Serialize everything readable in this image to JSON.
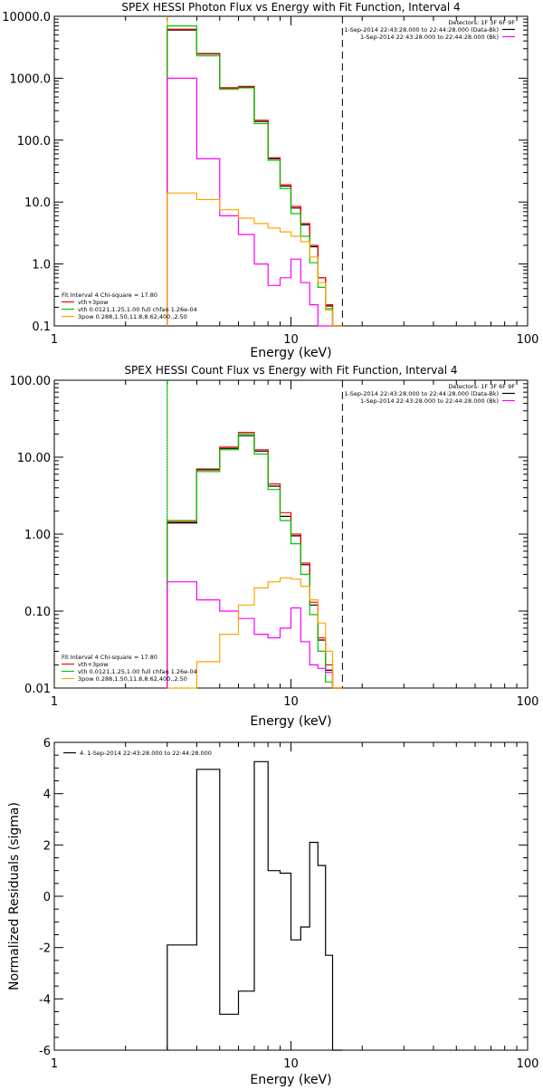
{
  "chart_data": [
    {
      "type": "line",
      "title": "SPEX HESSI Photon Flux vs Energy with Fit Function, Interval 4",
      "xlabel": "Energy (keV)",
      "ylabel": "",
      "xscale": "log",
      "yscale": "log",
      "xlim": [
        1,
        100
      ],
      "ylim": [
        0.1,
        10000
      ],
      "xticks": [
        {
          "v": 1,
          "label": "1"
        },
        {
          "v": 10,
          "label": "10"
        },
        {
          "v": 100,
          "label": "100"
        }
      ],
      "yticks": [
        {
          "v": 0.1,
          "label": "0.1"
        },
        {
          "v": 1,
          "label": "1.0"
        },
        {
          "v": 10,
          "label": "10.0"
        },
        {
          "v": 100,
          "label": "100.0"
        },
        {
          "v": 1000,
          "label": "1000.0"
        },
        {
          "v": 10000,
          "label": "10000.0"
        }
      ],
      "vlines": [
        {
          "x": 3.0,
          "style": "dotted",
          "color": "#000000"
        },
        {
          "x": 3.0,
          "style": "solid",
          "color": "#ffa500"
        },
        {
          "x": 16.5,
          "style": "dashed",
          "color": "#000000"
        }
      ],
      "legend_top_right": {
        "title": "Detectors: 1F 3F 6F 9F",
        "entries": [
          {
            "label": "1-Sep-2014 22:43:28.000 to 22:44:28.000 (Data-Bk)",
            "color": "#000000"
          },
          {
            "label": "1-Sep-2014 22:43:28.000 to 22:44:28.000 (Bk)",
            "color": "#ff00ff"
          }
        ]
      },
      "legend_bottom_left": {
        "title": "Fit Interval 4   Chi-square = 17.80",
        "entries": [
          {
            "label": "vth+3pow",
            "color": "#ff0000"
          },
          {
            "label": "vth 0.0121,1.25,1.00  full chfan 1.26e-04",
            "color": "#00c800"
          },
          {
            "label": "3pow 0.288,1.50,11.8,8.62,400.,2.50",
            "color": "#ffa500"
          }
        ]
      },
      "edges": [
        3.0,
        4.0,
        5.0,
        6.0,
        7.0,
        8.0,
        9.0,
        10.0,
        11.0,
        12.0,
        13.0,
        14.0,
        15.0,
        16.5
      ],
      "series": [
        {
          "color": "#000000",
          "values": [
            6000,
            2500,
            700,
            720,
            200,
            50,
            18,
            8.0,
            4.3,
            1.9,
            0.6,
            0.21,
            0.1
          ]
        },
        {
          "color": "#ff0000",
          "values": [
            6200,
            2450,
            690,
            740,
            210,
            52,
            19,
            8.5,
            4.5,
            2.0,
            0.6,
            0.22,
            0.1
          ]
        },
        {
          "color": "#00c800",
          "values": [
            7000,
            2300,
            660,
            700,
            185,
            47,
            16.5,
            6.5,
            2.8,
            1.05,
            0.42,
            0.19,
            0.1
          ]
        },
        {
          "color": "#ff00ff",
          "values": [
            1000,
            50,
            6.0,
            3.0,
            1.0,
            0.45,
            0.6,
            1.2,
            0.5,
            0.22,
            0.1,
            0.1,
            0.1
          ]
        },
        {
          "color": "#ffa500",
          "values": [
            14,
            11,
            7.5,
            5.5,
            4.5,
            3.8,
            3.3,
            2.8,
            2.3,
            1.3,
            0.5,
            0.18,
            0.1
          ]
        }
      ]
    },
    {
      "type": "line",
      "title": "SPEX HESSI Count Flux vs Energy with Fit Function, Interval 4",
      "xlabel": "Energy (keV)",
      "ylabel": "",
      "xscale": "log",
      "yscale": "log",
      "xlim": [
        1,
        100
      ],
      "ylim": [
        0.01,
        100
      ],
      "xticks": [
        {
          "v": 1,
          "label": "1"
        },
        {
          "v": 10,
          "label": "10"
        },
        {
          "v": 100,
          "label": "100"
        }
      ],
      "yticks": [
        {
          "v": 0.01,
          "label": "0.01"
        },
        {
          "v": 0.1,
          "label": "0.10"
        },
        {
          "v": 1,
          "label": "1.00"
        },
        {
          "v": 10,
          "label": "10.00"
        },
        {
          "v": 100,
          "label": "100.00"
        }
      ],
      "vlines": [
        {
          "x": 3.0,
          "style": "dotted",
          "color": "#000000"
        },
        {
          "x": 3.0,
          "style": "solid",
          "color": "#00c800"
        },
        {
          "x": 16.5,
          "style": "dashed",
          "color": "#000000"
        }
      ],
      "legend_top_right": {
        "title": "Detectors: 1F 3F 6F 9F",
        "entries": [
          {
            "label": "1-Sep-2014 22:43:28.000 to 22:44:28.000 (Data-Bk)",
            "color": "#000000"
          },
          {
            "label": "1-Sep-2014 22:43:28.000 to 22:44:28.000 (Bk)",
            "color": "#ff00ff"
          }
        ]
      },
      "legend_bottom_left": {
        "title": "Fit Interval 4   Chi-square = 17.80",
        "entries": [
          {
            "label": "vth+3pow",
            "color": "#ff0000"
          },
          {
            "label": "vth 0.0121,1.25,1.00  full chfan 1.26e-04",
            "color": "#00c800"
          },
          {
            "label": "3pow 0.288,1.50,11.8,8.62,400.,2.50",
            "color": "#ffa500"
          }
        ]
      },
      "edges": [
        3.0,
        4.0,
        5.0,
        6.0,
        7.0,
        8.0,
        9.0,
        10.0,
        11.0,
        12.0,
        13.0,
        14.0,
        15.0,
        16.5
      ],
      "series": [
        {
          "color": "#000000",
          "values": [
            1.4,
            7.0,
            13.0,
            19.0,
            12.0,
            4.2,
            1.7,
            0.95,
            0.4,
            0.12,
            0.042,
            0.017,
            0.01
          ]
        },
        {
          "color": "#ff0000",
          "values": [
            1.45,
            6.8,
            13.5,
            21.0,
            12.5,
            4.5,
            1.9,
            1.0,
            0.42,
            0.13,
            0.045,
            0.02,
            0.01
          ]
        },
        {
          "color": "#00c800",
          "values": [
            1.5,
            6.5,
            12.5,
            20.0,
            11.0,
            3.8,
            1.5,
            0.75,
            0.3,
            0.09,
            0.03,
            0.012,
            0.01
          ]
        },
        {
          "color": "#ff00ff",
          "values": [
            0.24,
            0.14,
            0.1,
            0.08,
            0.05,
            0.045,
            0.06,
            0.11,
            0.04,
            0.02,
            0.018,
            0.016,
            0.01
          ]
        },
        {
          "color": "#ffa500",
          "values": [
            0.01,
            0.022,
            0.05,
            0.12,
            0.2,
            0.24,
            0.27,
            0.26,
            0.21,
            0.14,
            0.07,
            0.03,
            0.01
          ]
        }
      ]
    },
    {
      "type": "line",
      "title": "",
      "xlabel": "Energy (keV)",
      "ylabel": "Normalized Residuals (sigma)",
      "xscale": "log",
      "yscale": "linear",
      "xlim": [
        1,
        100
      ],
      "ylim": [
        -6,
        6
      ],
      "xticks": [
        {
          "v": 1,
          "label": "1"
        },
        {
          "v": 10,
          "label": "10"
        },
        {
          "v": 100,
          "label": "100"
        }
      ],
      "yticks": [
        {
          "v": -6,
          "label": "-6"
        },
        {
          "v": -4,
          "label": "-4"
        },
        {
          "v": -2,
          "label": "-2"
        },
        {
          "v": 0,
          "label": "0"
        },
        {
          "v": 2,
          "label": "2"
        },
        {
          "v": 4,
          "label": "4"
        },
        {
          "v": 6,
          "label": "6"
        }
      ],
      "legend_top_left": {
        "entries": [
          {
            "label": "4.  1-Sep-2014 22:43:28.000 to 22:44:28.000",
            "color": "#000000"
          }
        ]
      },
      "edges": [
        3.0,
        4.0,
        5.0,
        6.0,
        7.0,
        8.0,
        9.0,
        10.0,
        11.0,
        12.0,
        13.0,
        14.0,
        15.0,
        16.5
      ],
      "series": [
        {
          "color": "#000000",
          "values": [
            -1.9,
            4.95,
            -4.6,
            -3.7,
            5.25,
            1.0,
            0.9,
            -1.7,
            -1.2,
            2.1,
            1.2,
            -2.3,
            -6.0
          ]
        }
      ]
    }
  ]
}
